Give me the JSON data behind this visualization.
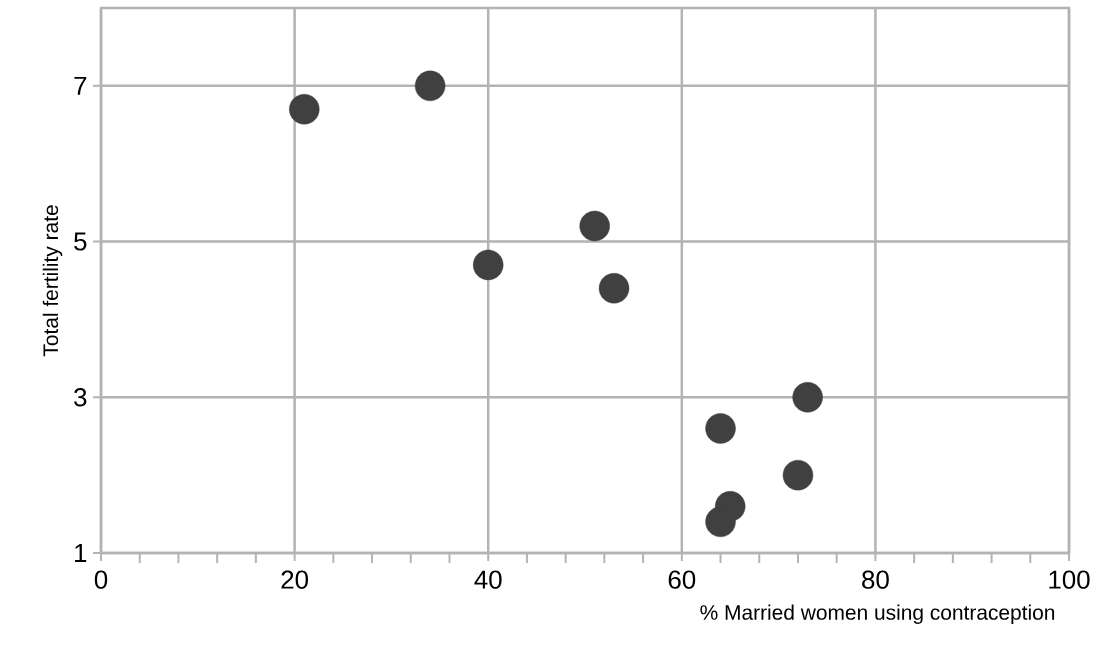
{
  "chart_data": {
    "type": "scatter",
    "xlabel": "% Married women using contraception",
    "ylabel": "Total fertility rate",
    "x": [
      21,
      34,
      51,
      40,
      53,
      73,
      64,
      72,
      65,
      64
    ],
    "values": [
      6.7,
      7.0,
      5.2,
      4.7,
      4.4,
      3.0,
      2.6,
      2.0,
      1.6,
      1.4
    ],
    "color": "#404040",
    "xlim": [
      0,
      100
    ],
    "ylim": [
      1,
      8
    ],
    "xticks": [
      0,
      20,
      40,
      60,
      80,
      100
    ],
    "yticks": [
      1,
      3,
      5,
      7
    ],
    "grid": true
  }
}
